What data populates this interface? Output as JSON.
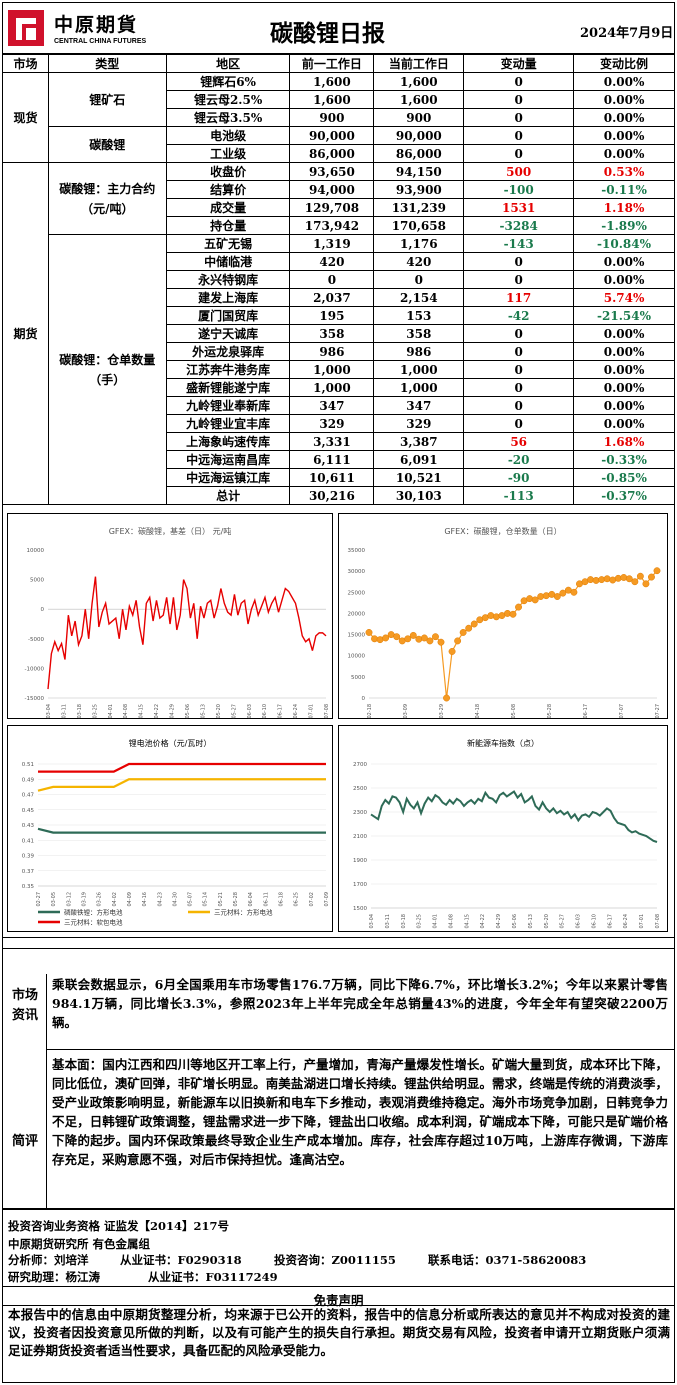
{
  "header": {
    "logo_cn": "中原期貨",
    "logo_en": "CENTRAL CHINA FUTURES",
    "title": "碳酸锂日报",
    "date": "2024年7月9日"
  },
  "table": {
    "headers": [
      "市场",
      "类型",
      "地区",
      "前一工作日",
      "当前工作日",
      "变动量",
      "变动比例"
    ],
    "spot": {
      "market": "现货",
      "groups": [
        {
          "type": "锂矿石",
          "rows": [
            {
              "region": "锂辉石6%",
              "prev": "1,600",
              "curr": "1,600",
              "chg": "0",
              "pct": "0.00%",
              "color": ""
            },
            {
              "region": "锂云母2.5%",
              "prev": "1,600",
              "curr": "1,600",
              "chg": "0",
              "pct": "0.00%",
              "color": ""
            },
            {
              "region": "锂云母3.5%",
              "prev": "900",
              "curr": "900",
              "chg": "0",
              "pct": "0.00%",
              "color": ""
            }
          ]
        },
        {
          "type": "碳酸锂",
          "rows": [
            {
              "region": "电池级",
              "prev": "90,000",
              "curr": "90,000",
              "chg": "0",
              "pct": "0.00%",
              "color": ""
            },
            {
              "region": "工业级",
              "prev": "86,000",
              "curr": "86,000",
              "chg": "0",
              "pct": "0.00%",
              "color": ""
            }
          ]
        }
      ]
    },
    "futures": {
      "market": "期货",
      "groups": [
        {
          "type": "碳酸锂：主力合约（元/吨）",
          "rows": [
            {
              "region": "收盘价",
              "prev": "93,650",
              "curr": "94,150",
              "chg": "500",
              "pct": "0.53%",
              "color": "red"
            },
            {
              "region": "结算价",
              "prev": "94,000",
              "curr": "93,900",
              "chg": "-100",
              "pct": "-0.11%",
              "color": "green"
            },
            {
              "region": "成交量",
              "prev": "129,708",
              "curr": "131,239",
              "chg": "1531",
              "pct": "1.18%",
              "color": "red"
            },
            {
              "region": "持仓量",
              "prev": "173,942",
              "curr": "170,658",
              "chg": "-3284",
              "pct": "-1.89%",
              "color": "green"
            }
          ]
        },
        {
          "type": "碳酸锂：仓单数量（手）",
          "rows": [
            {
              "region": "五矿无锡",
              "prev": "1,319",
              "curr": "1,176",
              "chg": "-143",
              "pct": "-10.84%",
              "color": "green"
            },
            {
              "region": "中储临港",
              "prev": "420",
              "curr": "420",
              "chg": "0",
              "pct": "0.00%",
              "color": ""
            },
            {
              "region": "永兴特钢库",
              "prev": "0",
              "curr": "0",
              "chg": "0",
              "pct": "0.00%",
              "color": ""
            },
            {
              "region": "建发上海库",
              "prev": "2,037",
              "curr": "2,154",
              "chg": "117",
              "pct": "5.74%",
              "color": "red"
            },
            {
              "region": "厦门国贸库",
              "prev": "195",
              "curr": "153",
              "chg": "-42",
              "pct": "-21.54%",
              "color": "green"
            },
            {
              "region": "遂宁天诚库",
              "prev": "358",
              "curr": "358",
              "chg": "0",
              "pct": "0.00%",
              "color": ""
            },
            {
              "region": "外运龙泉驿库",
              "prev": "986",
              "curr": "986",
              "chg": "0",
              "pct": "0.00%",
              "color": ""
            },
            {
              "region": "江苏奔牛港务库",
              "prev": "1,000",
              "curr": "1,000",
              "chg": "0",
              "pct": "0.00%",
              "color": ""
            },
            {
              "region": "盛新锂能遂宁库",
              "prev": "1,000",
              "curr": "1,000",
              "chg": "0",
              "pct": "0.00%",
              "color": ""
            },
            {
              "region": "九岭锂业奉新库",
              "prev": "347",
              "curr": "347",
              "chg": "0",
              "pct": "0.00%",
              "color": ""
            },
            {
              "region": "九岭锂业宜丰库",
              "prev": "329",
              "curr": "329",
              "chg": "0",
              "pct": "0.00%",
              "color": ""
            },
            {
              "region": "上海象屿速传库",
              "prev": "3,331",
              "curr": "3,387",
              "chg": "56",
              "pct": "1.68%",
              "color": "red"
            },
            {
              "region": "中远海运南昌库",
              "prev": "6,111",
              "curr": "6,091",
              "chg": "-20",
              "pct": "-0.33%",
              "color": "green"
            },
            {
              "region": "中远海运镇江库",
              "prev": "10,611",
              "curr": "10,521",
              "chg": "-90",
              "pct": "-0.85%",
              "color": "green"
            },
            {
              "region": "总计",
              "prev": "30,216",
              "curr": "30,103",
              "chg": "-113",
              "pct": "-0.37%",
              "color": "green"
            }
          ]
        }
      ]
    }
  },
  "colors": {
    "up": "#e60000",
    "down": "#1a7a4c",
    "brand": "#d0112b"
  },
  "chart_data": [
    {
      "type": "line",
      "title": "GFEX：碳酸锂，基差（日） 元/吨",
      "ylim": [
        -15000,
        10000
      ],
      "yticks": [
        "10000",
        "5000",
        "0",
        "-5000",
        "-10000",
        "-15000"
      ],
      "x_ticks": [
        "03-04",
        "03-11",
        "03-18",
        "03-25",
        "04-01",
        "04-08",
        "04-15",
        "04-22",
        "04-29",
        "05-06",
        "05-13",
        "05-20",
        "05-27",
        "06-03",
        "06-10",
        "06-17",
        "06-24",
        "07-01",
        "07-08"
      ],
      "series": [
        {
          "color": "#e60000",
          "values": [
            -13500,
            -7500,
            -5500,
            -7000,
            -5800,
            -8500,
            -1000,
            -4500,
            -2000,
            -6000,
            -4500,
            0,
            -5000,
            1000,
            5500,
            -3000,
            -500,
            1000,
            -2500,
            -2000,
            -1500,
            -5000,
            0,
            -3500,
            500,
            -1000,
            1500,
            -3000,
            -6000,
            1000,
            2000,
            -2000,
            1500,
            -1500,
            -1000,
            2000,
            -2500,
            2000,
            -3500,
            -1000,
            5000,
            3500,
            -1500,
            1000,
            -5000,
            500,
            -1500,
            1000,
            1500,
            -1500,
            500,
            3500,
            1000,
            -500,
            -1000,
            2500,
            -1000,
            1000,
            1500,
            -2500,
            0,
            1500,
            -1000,
            500,
            2000,
            -500,
            1000,
            2000,
            -500,
            1500,
            3500,
            3000,
            2000,
            1000,
            -1500,
            -4500,
            -5500,
            -5000,
            -7000,
            -4500,
            -4000,
            -4000,
            -4500
          ]
        }
      ]
    },
    {
      "type": "scatter",
      "title": "GFEX：碳酸锂，仓单数量（日）",
      "ylim": [
        0,
        35000
      ],
      "yticks": [
        "35000",
        "30000",
        "25000",
        "20000",
        "15000",
        "10000",
        "5000",
        "0"
      ],
      "x_ticks": [
        "02-18",
        "03-09",
        "03-29",
        "04-18",
        "05-08",
        "05-28",
        "06-17",
        "07-07",
        "07-27"
      ],
      "series": [
        {
          "color": "#f59a23",
          "values": [
            15500,
            14000,
            13800,
            14200,
            15000,
            14500,
            13500,
            14000,
            14800,
            13900,
            14200,
            13500,
            14500,
            13200,
            0,
            11000,
            13500,
            15500,
            16500,
            17500,
            18500,
            19000,
            19500,
            19200,
            19500,
            20000,
            19800,
            21500,
            23000,
            23500,
            23200,
            24000,
            24200,
            24500,
            24000,
            24800,
            25500,
            25000,
            27000,
            27500,
            28000,
            27800,
            28000,
            28200,
            27900,
            28300,
            28500,
            28200,
            27500,
            28800,
            27000,
            28600,
            30100
          ]
        }
      ]
    },
    {
      "type": "line",
      "title": "锂电池价格（元/瓦时）",
      "ylim": [
        0.35,
        0.51
      ],
      "yticks": [
        "0.51",
        "0.49",
        "0.47",
        "0.45",
        "0.43",
        "0.41",
        "0.39",
        "0.37",
        "0.35"
      ],
      "x_ticks": [
        "02-27",
        "03-05",
        "03-12",
        "03-19",
        "03-26",
        "04-02",
        "04-09",
        "04-16",
        "04-23",
        "04-30",
        "05-07",
        "05-14",
        "05-21",
        "05-28",
        "06-04",
        "06-11",
        "06-18",
        "06-25",
        "07-02",
        "07-09"
      ],
      "series": [
        {
          "name": "磷酸铁锂：方形电池",
          "color": "#2e6b57",
          "values": [
            0.425,
            0.42,
            0.42,
            0.42,
            0.42,
            0.42,
            0.42,
            0.42,
            0.42,
            0.42,
            0.42,
            0.42,
            0.42,
            0.42,
            0.42,
            0.42,
            0.42,
            0.42,
            0.42,
            0.42
          ]
        },
        {
          "name": "三元材料：方形电池",
          "color": "#f5b400",
          "values": [
            0.475,
            0.48,
            0.48,
            0.48,
            0.48,
            0.48,
            0.49,
            0.49,
            0.49,
            0.49,
            0.49,
            0.49,
            0.49,
            0.49,
            0.49,
            0.49,
            0.49,
            0.49,
            0.49,
            0.49
          ]
        },
        {
          "name": "三元材料：软包电池",
          "color": "#e60000",
          "values": [
            0.5,
            0.5,
            0.5,
            0.5,
            0.5,
            0.5,
            0.51,
            0.51,
            0.51,
            0.51,
            0.51,
            0.51,
            0.51,
            0.51,
            0.51,
            0.51,
            0.51,
            0.51,
            0.51,
            0.51
          ]
        }
      ]
    },
    {
      "type": "line",
      "title": "新能源车指数（点）",
      "ylim": [
        1500,
        2700
      ],
      "yticks": [
        "2700",
        "2500",
        "2300",
        "2100",
        "1900",
        "1700",
        "1500"
      ],
      "x_ticks": [
        "03-04",
        "03-11",
        "03-18",
        "03-25",
        "04-01",
        "04-08",
        "04-15",
        "04-22",
        "04-29",
        "05-06",
        "05-13",
        "05-20",
        "05-27",
        "06-03",
        "06-10",
        "06-17",
        "06-24",
        "07-01",
        "07-08"
      ],
      "series": [
        {
          "color": "#2e6b57",
          "values": [
            2280,
            2260,
            2240,
            2350,
            2400,
            2370,
            2430,
            2420,
            2380,
            2300,
            2410,
            2360,
            2330,
            2380,
            2290,
            2370,
            2420,
            2390,
            2440,
            2420,
            2380,
            2360,
            2400,
            2370,
            2410,
            2390,
            2350,
            2380,
            2400,
            2370,
            2410,
            2390,
            2460,
            2420,
            2410,
            2380,
            2440,
            2460,
            2430,
            2450,
            2470,
            2420,
            2450,
            2380,
            2400,
            2430,
            2350,
            2320,
            2380,
            2330,
            2300,
            2330,
            2290,
            2310,
            2280,
            2300,
            2250,
            2280,
            2230,
            2270,
            2280,
            2260,
            2300,
            2290,
            2270,
            2300,
            2330,
            2310,
            2250,
            2210,
            2200,
            2190,
            2150,
            2130,
            2140,
            2120,
            2110,
            2100,
            2080,
            2060,
            2050
          ]
        }
      ]
    }
  ],
  "market_info": {
    "label": "市场资讯",
    "text": "乘联会数据显示，6月全国乘用车市场零售176.7万辆，同比下降6.7%，环比增长3.2%；今年以来累计零售984.1万辆，同比增长3.3%，参照2023年上半年完成全年总销量43%的进度，今年全年有望突破2200万辆。"
  },
  "commentary": {
    "label": "简评",
    "text": "基本面：国内江西和四川等地区开工率上行，产量增加，青海产量爆发性增长。矿端大量到货，成本环比下降，同比低位，澳矿回弹，非矿增长明显。南美盐湖进口增长持续。锂盐供给明显。需求，终端是传统的消费淡季，受产业政策影响明显，新能源车以旧换新和电车下乡推动，表观消费维持稳定。海外市场竞争加剧，日韩竞争力不足，日韩锂矿政策调整，锂盐需求进一步下降，锂盐出口收缩。成本利润，矿端成本下降，可能只是矿端价格下降的起步。国内环保政策最终导致企业生产成本增加。库存，社会库存超过10万吨，上游库存微调，下游库存充足，采购意愿不强，对后市保持担忧。逢高沽空。"
  },
  "footer": {
    "line1": "投资咨询业务资格  证监发【2014】217号",
    "line2": "中原期货研究所  有色金属组",
    "analyst_label": "分析师：刘培洋",
    "analyst_cert": "从业证书：F0290318",
    "consult": "投资咨询：Z0011155",
    "phone": "联系电话：0371-58620083",
    "assistant": "研究助理：杨江涛",
    "assistant_cert": "从业证书：F03117249",
    "disclaimer_title": "免责声明",
    "disclaimer": "本报告中的信息由中原期货整理分析，均来源于已公开的资料，报告中的信息分析或所表达的意见并不构成对投资的建议，投资者因投资意见所做的判断，以及有可能产生的损失自行承担。期货交易有风险，投资者申请开立期货账户须满足证券期货投资者适当性要求，具备匹配的风险承受能力。"
  }
}
